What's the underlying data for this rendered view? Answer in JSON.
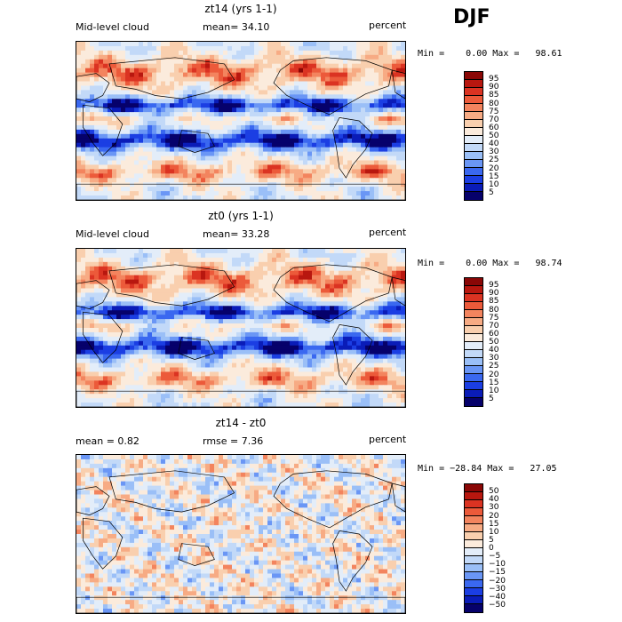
{
  "season": "DJF",
  "units": "percent",
  "variable": "Mid-level cloud",
  "palette_abs": [
    "#06016b",
    "#0a1cb8",
    "#1b3ee3",
    "#3a68f0",
    "#6a96f5",
    "#9abff7",
    "#c2d9f8",
    "#e3edf9",
    "#fbebdc",
    "#f9cfae",
    "#f7ab84",
    "#f3845e",
    "#ec5a3a",
    "#db3322",
    "#b8170f",
    "#8a0706"
  ],
  "palette_diff": [
    "#06016b",
    "#0a1cb8",
    "#1b3ee3",
    "#3a68f0",
    "#6a96f5",
    "#9abff7",
    "#c2d9f8",
    "#e3edf9",
    "#fbebdc",
    "#f9cfae",
    "#f7ab84",
    "#f3845e",
    "#ec5a3a",
    "#db3322",
    "#b8170f",
    "#8a0706"
  ],
  "panels": [
    {
      "title": "zt14 (yrs 1-1)",
      "left_label": "Mid-level cloud",
      "mean_label": "mean=   34.10",
      "units": "percent",
      "minmax": "Min =    0.00 Max =   98.61",
      "ticks": [
        "95",
        "90",
        "85",
        "80",
        "75",
        "70",
        "60",
        "50",
        "40",
        "30",
        "25",
        "20",
        "15",
        "10",
        "5"
      ],
      "kind": "abs",
      "seed": 14
    },
    {
      "title": "zt0 (yrs 1-1)",
      "left_label": "Mid-level cloud",
      "mean_label": "mean=   33.28",
      "units": "percent",
      "minmax": "Min =    0.00 Max =   98.74",
      "ticks": [
        "95",
        "90",
        "85",
        "80",
        "75",
        "70",
        "60",
        "50",
        "40",
        "30",
        "25",
        "20",
        "15",
        "10",
        "5"
      ],
      "kind": "abs",
      "seed": 3
    },
    {
      "title": "zt14 - zt0",
      "left_label": "mean =    0.82",
      "mean_label": "rmse =    7.36",
      "units": "percent",
      "minmax": "Min = −28.84 Max =   27.05",
      "ticks": [
        "50",
        "40",
        "30",
        "20",
        "15",
        "10",
        "5",
        "0",
        "−5",
        "−10",
        "−15",
        "−20",
        "−30",
        "−40",
        "−50"
      ],
      "kind": "diff",
      "seed": 7
    }
  ]
}
